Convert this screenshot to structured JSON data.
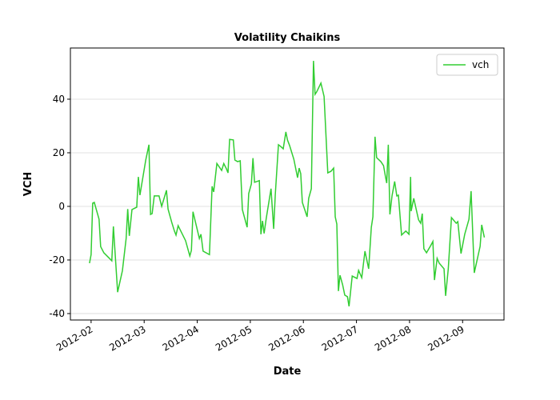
{
  "chart_data": {
    "type": "line",
    "title": "Volatility Chaikins",
    "xlabel": "Date",
    "ylabel": "VCH",
    "x": [
      0.97,
      1.0,
      1.03,
      1.06,
      1.15,
      1.18,
      1.24,
      1.36,
      1.39,
      1.42,
      1.5,
      1.59,
      1.66,
      1.69,
      1.72,
      1.77,
      1.86,
      1.89,
      1.92,
      2.03,
      2.09,
      2.12,
      2.15,
      2.19,
      2.28,
      2.33,
      2.42,
      2.45,
      2.52,
      2.57,
      2.6,
      2.64,
      2.72,
      2.78,
      2.86,
      2.89,
      2.92,
      3.01,
      3.04,
      3.07,
      3.11,
      3.23,
      3.28,
      3.31,
      3.37,
      3.46,
      3.5,
      3.55,
      3.58,
      3.61,
      3.68,
      3.71,
      3.76,
      3.81,
      3.85,
      3.94,
      3.97,
      4.02,
      4.05,
      4.08,
      4.11,
      4.17,
      4.2,
      4.23,
      4.26,
      4.3,
      4.39,
      4.44,
      4.47,
      4.53,
      4.57,
      4.62,
      4.67,
      4.7,
      4.74,
      4.82,
      4.89,
      4.92,
      4.95,
      4.98,
      5.07,
      5.1,
      5.15,
      5.19,
      5.22,
      5.25,
      5.33,
      5.39,
      5.46,
      5.52,
      5.57,
      5.6,
      5.63,
      5.66,
      5.69,
      5.74,
      5.78,
      5.83,
      5.86,
      5.92,
      6.01,
      6.04,
      6.1,
      6.16,
      6.23,
      6.28,
      6.31,
      6.35,
      6.38,
      6.46,
      6.51,
      6.55,
      6.57,
      6.6,
      6.63,
      6.67,
      6.72,
      6.76,
      6.79,
      6.85,
      6.93,
      6.99,
      7.02,
      7.03,
      7.08,
      7.12,
      7.17,
      7.21,
      7.24,
      7.27,
      7.32,
      7.4,
      7.44,
      7.47,
      7.52,
      7.56,
      7.65,
      7.68,
      7.73,
      7.79,
      7.88,
      7.91,
      7.97,
      8.04,
      8.12,
      8.16,
      8.22,
      8.33,
      8.36,
      8.41
    ],
    "series": [
      {
        "name": "vch",
        "color": "#32cd32",
        "values": [
          -21.2,
          -18,
          1.2,
          1.5,
          -4.8,
          -15,
          -17.3,
          -19.7,
          -20.3,
          -7.5,
          -32,
          -24,
          -12,
          -1,
          -11,
          -1.2,
          -0.3,
          11,
          4.2,
          17.3,
          23,
          -3,
          -2.7,
          3.9,
          3.9,
          0,
          6,
          -1,
          -6,
          -9.2,
          -10.7,
          -7.2,
          -10.4,
          -12.8,
          -18.5,
          -16.4,
          -2,
          -9.5,
          -12,
          -10.4,
          -16.7,
          -18,
          7.5,
          5.4,
          16,
          13.4,
          16,
          14,
          12.5,
          25,
          24.8,
          17.3,
          16.7,
          17,
          -1.2,
          -7.8,
          4.8,
          8.4,
          18,
          9,
          9.2,
          9.6,
          -10.4,
          -5.4,
          -10.1,
          -4.5,
          6.6,
          -8.4,
          4.2,
          23,
          22.4,
          21.5,
          27.8,
          24.8,
          22.7,
          17.6,
          10.7,
          14.3,
          12.2,
          1.5,
          -3.9,
          3,
          6.6,
          54.3,
          41.8,
          42.7,
          46,
          41,
          12.5,
          13.1,
          14.3,
          -3.9,
          -6.6,
          -31.6,
          -25.7,
          -29.3,
          -33.1,
          -33.7,
          -37.3,
          -26,
          -26.9,
          -23.9,
          -26.6,
          -16.7,
          -23.3,
          -7.8,
          -3.9,
          26,
          18.2,
          16.7,
          15.2,
          10.7,
          8.7,
          23,
          -3,
          3.9,
          9.3,
          3.9,
          4.2,
          -10.7,
          -9.2,
          -10.4,
          11,
          -1.8,
          3,
          -0.6,
          -5,
          -6.3,
          -2.7,
          -15.8,
          -17.3,
          -14.6,
          -13.1,
          -27.5,
          -19.4,
          -21.2,
          -23.3,
          -33.4,
          -23.3,
          -4.2,
          -6.3,
          -5.7,
          -17.6,
          -10.4,
          -4.8,
          5.7,
          -24.8,
          -14.9,
          -6.9,
          -11.6
        ]
      }
    ],
    "xlim": [
      0.61,
      8.78
    ],
    "xticks": [
      {
        "value": 1,
        "label": "2012-02"
      },
      {
        "value": 2,
        "label": "2012-03"
      },
      {
        "value": 3,
        "label": "2012-04"
      },
      {
        "value": 4,
        "label": "2012-05"
      },
      {
        "value": 5,
        "label": "2012-06"
      },
      {
        "value": 6,
        "label": "2012-07"
      },
      {
        "value": 7,
        "label": "2012-08"
      },
      {
        "value": 8,
        "label": "2012-09"
      }
    ],
    "ylim": [
      -42.4,
      59.1
    ],
    "yticks": [
      -40,
      -20,
      0,
      20,
      40
    ],
    "grid": "y",
    "legend": "upper right"
  }
}
